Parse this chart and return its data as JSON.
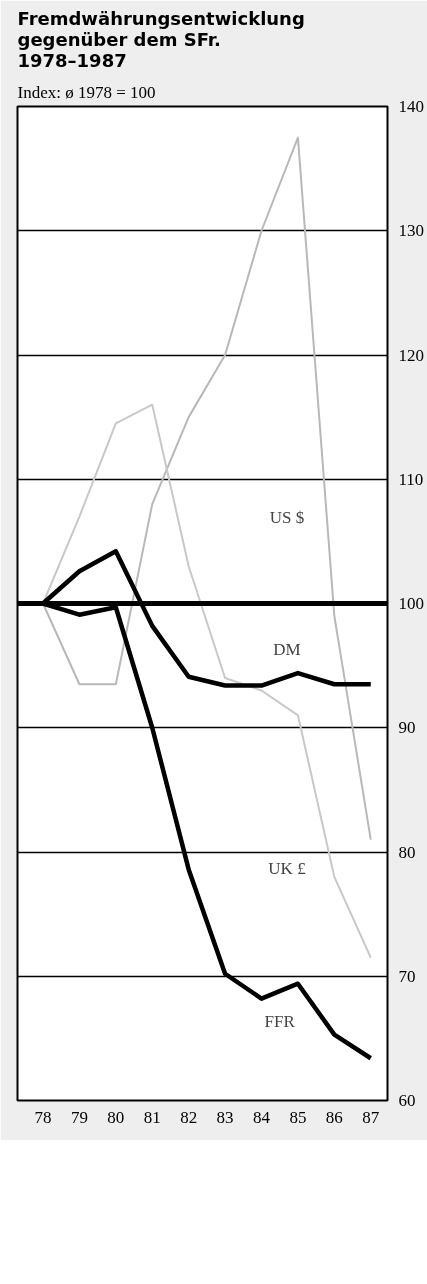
{
  "chart_data": {
    "type": "line",
    "title": "Fremdwährungsentwicklung gegenüber dem SFr. 1978–1987",
    "subtitle": "Index: ø 1978 = 100",
    "categories": [
      "78",
      "79",
      "80",
      "81",
      "82",
      "83",
      "84",
      "85",
      "86",
      "87"
    ],
    "series": [
      {
        "name": "US $",
        "color": "#b8b8b8",
        "values": [
          100,
          93.5,
          93.5,
          108,
          115,
          120,
          130,
          137.5,
          99,
          81
        ]
      },
      {
        "name": "UK £",
        "color": "#c8c8c8",
        "values": [
          100,
          107,
          114.5,
          116,
          103,
          94,
          93,
          91,
          78,
          71.5
        ]
      },
      {
        "name": "DM",
        "color": "#000000",
        "values": [
          100,
          102.6,
          104.2,
          98.2,
          94.1,
          93.4,
          93.4,
          94.4,
          93.5,
          93.5
        ]
      },
      {
        "name": "FFR",
        "color": "#000000",
        "values": [
          100,
          99.1,
          99.7,
          90,
          78.6,
          70.2,
          68.2,
          69.4,
          65.3,
          63.4
        ]
      }
    ],
    "ylim": [
      60,
      140
    ],
    "yticks": [
      60,
      70,
      80,
      90,
      100,
      110,
      120,
      130,
      140
    ],
    "ref_lines": [
      {
        "axis": "y",
        "value": 100,
        "color": "#000000"
      }
    ],
    "grid": "y"
  }
}
